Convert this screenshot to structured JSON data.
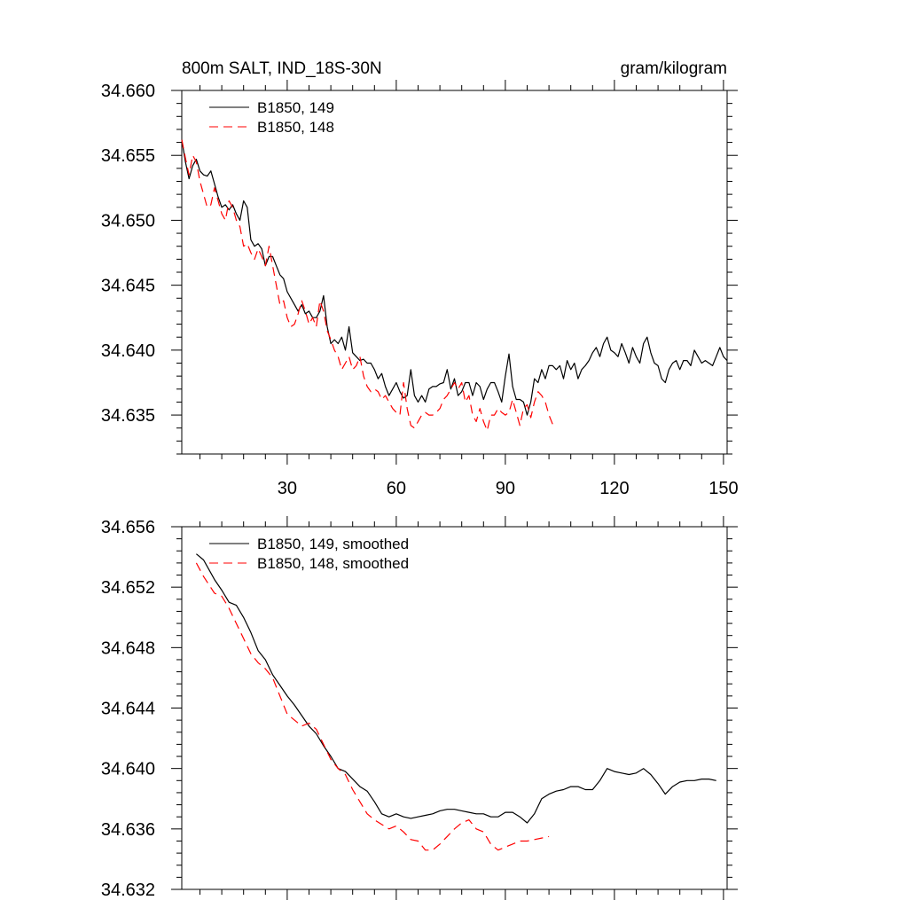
{
  "chart_data": [
    {
      "type": "line",
      "title": "800m SALT, IND_18S-30N",
      "units": "gram/kilogram",
      "xlabel": "",
      "ylabel": "",
      "xlim": [
        1,
        151
      ],
      "ylim": [
        34.632,
        34.66
      ],
      "xticks": [
        30,
        60,
        90,
        120,
        150
      ],
      "yticks": [
        34.635,
        34.64,
        34.645,
        34.65,
        34.655,
        34.66
      ],
      "ytick_labels": [
        "34.635",
        "34.640",
        "34.645",
        "34.650",
        "34.655",
        "34.660"
      ],
      "legend_position": "top-left",
      "series": [
        {
          "name": "B1850, 149",
          "color": "#000000",
          "dash": "solid",
          "x": [
            1,
            2,
            3,
            4,
            5,
            6,
            7,
            8,
            9,
            10,
            11,
            12,
            13,
            14,
            15,
            16,
            17,
            18,
            19,
            20,
            21,
            22,
            23,
            24,
            25,
            26,
            27,
            28,
            29,
            30,
            31,
            32,
            33,
            34,
            35,
            36,
            37,
            38,
            39,
            40,
            41,
            42,
            43,
            44,
            45,
            46,
            47,
            48,
            49,
            50,
            51,
            52,
            53,
            54,
            55,
            56,
            57,
            58,
            59,
            60,
            61,
            62,
            63,
            64,
            65,
            66,
            67,
            68,
            69,
            70,
            71,
            72,
            73,
            74,
            75,
            76,
            77,
            78,
            79,
            80,
            81,
            82,
            83,
            84,
            85,
            86,
            87,
            88,
            89,
            90,
            91,
            92,
            93,
            94,
            95,
            96,
            97,
            98,
            99,
            100,
            101,
            102,
            103,
            104,
            105,
            106,
            107,
            108,
            109,
            110,
            111,
            112,
            113,
            114,
            115,
            116,
            117,
            118,
            119,
            120,
            121,
            122,
            123,
            124,
            125,
            126,
            127,
            128,
            129,
            130,
            131,
            132,
            133,
            134,
            135,
            136,
            137,
            138,
            139,
            140,
            141,
            142,
            143,
            144,
            145,
            146,
            147,
            148,
            149,
            150,
            151
          ],
          "values": [
            34.6562,
            34.6545,
            34.6532,
            34.6542,
            34.6547,
            34.6538,
            34.6535,
            34.6534,
            34.6538,
            34.6528,
            34.6518,
            34.651,
            34.6512,
            34.6508,
            34.6512,
            34.6505,
            34.65,
            34.6515,
            34.651,
            34.6485,
            34.648,
            34.6482,
            34.6478,
            34.6465,
            34.6472,
            34.6472,
            34.6465,
            34.6458,
            34.6455,
            34.6445,
            34.644,
            34.6435,
            34.643,
            34.6435,
            34.6428,
            34.643,
            34.6425,
            34.6425,
            34.643,
            34.6442,
            34.6418,
            34.6405,
            34.6408,
            34.6405,
            34.641,
            34.64,
            34.6418,
            34.6398,
            34.6395,
            34.6392,
            34.6393,
            34.639,
            34.639,
            34.6385,
            34.6378,
            34.6382,
            34.6372,
            34.6365,
            34.637,
            34.6375,
            34.6368,
            34.6363,
            34.6365,
            34.6385,
            34.6365,
            34.636,
            34.6365,
            34.636,
            34.637,
            34.6372,
            34.6372,
            34.6374,
            34.6375,
            34.6385,
            34.637,
            34.6378,
            34.6365,
            34.6368,
            34.6375,
            34.6375,
            34.6365,
            34.6375,
            34.6372,
            34.6362,
            34.637,
            34.6375,
            34.6375,
            34.6368,
            34.636,
            34.638,
            34.6397,
            34.6372,
            34.6362,
            34.6362,
            34.636,
            34.635,
            34.636,
            34.6378,
            34.6375,
            34.6385,
            34.6378,
            34.6388,
            34.6388,
            34.6385,
            34.6388,
            34.6378,
            34.6392,
            34.6385,
            34.639,
            34.6378,
            34.6385,
            34.6388,
            34.6392,
            34.6398,
            34.6402,
            34.6395,
            34.6405,
            34.641,
            34.64,
            34.6398,
            34.6395,
            34.6405,
            34.6398,
            34.639,
            34.6402,
            34.6395,
            34.639,
            34.6405,
            34.641,
            34.6398,
            34.639,
            34.6388,
            34.6378,
            34.6375,
            34.6385,
            34.639,
            34.6392,
            34.6385,
            34.6392,
            34.6392,
            34.6388,
            34.64,
            34.6395,
            34.639,
            34.6392,
            34.639,
            34.6388,
            34.6395,
            34.6402,
            34.6395,
            34.6392
          ]
        },
        {
          "name": "B1850, 148",
          "color": "#ff0000",
          "dash": "dashed",
          "x": [
            1,
            2,
            3,
            4,
            5,
            6,
            7,
            8,
            9,
            10,
            11,
            12,
            13,
            14,
            15,
            16,
            17,
            18,
            19,
            20,
            21,
            22,
            23,
            24,
            25,
            26,
            27,
            28,
            29,
            30,
            31,
            32,
            33,
            34,
            35,
            36,
            37,
            38,
            39,
            40,
            41,
            42,
            43,
            44,
            45,
            46,
            47,
            48,
            49,
            50,
            51,
            52,
            53,
            54,
            55,
            56,
            57,
            58,
            59,
            60,
            61,
            62,
            63,
            64,
            65,
            66,
            67,
            68,
            69,
            70,
            71,
            72,
            73,
            74,
            75,
            76,
            77,
            78,
            79,
            80,
            81,
            82,
            83,
            84,
            85,
            86,
            87,
            88,
            89,
            90,
            91,
            92,
            93,
            94,
            95,
            96,
            97,
            98,
            99,
            100,
            101,
            102,
            103
          ],
          "values": [
            34.6562,
            34.6548,
            34.6535,
            34.655,
            34.6545,
            34.653,
            34.652,
            34.651,
            34.6512,
            34.6525,
            34.6515,
            34.6505,
            34.65,
            34.6515,
            34.651,
            34.65,
            34.6495,
            34.648,
            34.6482,
            34.6475,
            34.647,
            34.6478,
            34.6472,
            34.6465,
            34.648,
            34.6465,
            34.645,
            34.6435,
            34.6438,
            34.6425,
            34.6418,
            34.642,
            34.6428,
            34.6438,
            34.643,
            34.642,
            34.6425,
            34.6418,
            34.6438,
            34.643,
            34.6415,
            34.6408,
            34.64,
            34.6395,
            34.6385,
            34.639,
            34.6395,
            34.6385,
            34.6388,
            34.6395,
            34.638,
            34.6372,
            34.6368,
            34.637,
            34.6368,
            34.6362,
            34.6365,
            34.636,
            34.6355,
            34.6352,
            34.635,
            34.6375,
            34.6355,
            34.6342,
            34.634,
            34.6345,
            34.635,
            34.6352,
            34.635,
            34.635,
            34.6352,
            34.6355,
            34.6362,
            34.6365,
            34.637,
            34.6375,
            34.637,
            34.6375,
            34.636,
            34.6365,
            34.635,
            34.6345,
            34.6355,
            34.6345,
            34.6338,
            34.635,
            34.635,
            34.6355,
            34.6352,
            34.635,
            34.6352,
            34.6362,
            34.6352,
            34.6342,
            34.6355,
            34.6358,
            34.6348,
            34.636,
            34.6368,
            34.6365,
            34.636,
            34.635,
            34.6343
          ]
        }
      ]
    },
    {
      "type": "line",
      "title": "",
      "xlabel": "",
      "ylabel": "",
      "xlim": [
        1,
        151
      ],
      "ylim": [
        34.632,
        34.656
      ],
      "xticks": [
        30,
        60,
        90,
        120,
        150
      ],
      "yticks": [
        34.632,
        34.636,
        34.64,
        34.644,
        34.648,
        34.652,
        34.656
      ],
      "ytick_labels": [
        "34.632",
        "34.636",
        "34.640",
        "34.644",
        "34.648",
        "34.652",
        "34.656"
      ],
      "legend_position": "top-left",
      "series": [
        {
          "name": "B1850, 149, smoothed",
          "color": "#000000",
          "dash": "solid",
          "x": [
            5,
            7,
            10,
            12,
            14,
            16,
            18,
            20,
            22,
            24,
            26,
            28,
            30,
            32,
            34,
            36,
            38,
            40,
            42,
            44,
            46,
            48,
            50,
            52,
            54,
            56,
            58,
            60,
            62,
            64,
            66,
            68,
            70,
            72,
            74,
            76,
            78,
            80,
            82,
            84,
            86,
            88,
            90,
            92,
            94,
            96,
            98,
            100,
            102,
            104,
            106,
            108,
            110,
            112,
            114,
            116,
            118,
            120,
            122,
            124,
            126,
            128,
            130,
            132,
            134,
            136,
            138,
            140,
            142,
            144,
            146,
            148
          ],
          "values": [
            34.6542,
            34.6538,
            34.6525,
            34.6518,
            34.651,
            34.6508,
            34.65,
            34.649,
            34.6478,
            34.6472,
            34.6462,
            34.6455,
            34.6448,
            34.6442,
            34.6435,
            34.6428,
            34.6423,
            34.6415,
            34.6408,
            34.64,
            34.6398,
            34.6393,
            34.6388,
            34.6385,
            34.6378,
            34.637,
            34.6368,
            34.637,
            34.6368,
            34.6367,
            34.6368,
            34.6369,
            34.637,
            34.6372,
            34.6373,
            34.6373,
            34.6372,
            34.6371,
            34.637,
            34.637,
            34.6368,
            34.6368,
            34.6371,
            34.6371,
            34.6368,
            34.6364,
            34.637,
            34.638,
            34.6383,
            34.6385,
            34.6386,
            34.6388,
            34.6388,
            34.6386,
            34.6386,
            34.6392,
            34.64,
            34.6398,
            34.6397,
            34.6396,
            34.6397,
            34.64,
            34.6396,
            34.639,
            34.6383,
            34.6388,
            34.6391,
            34.6392,
            34.6392,
            34.6393,
            34.6393,
            34.6392
          ]
        },
        {
          "name": "B1850, 148, smoothed",
          "color": "#ff0000",
          "dash": "dashed",
          "x": [
            5,
            7,
            10,
            12,
            14,
            16,
            18,
            20,
            22,
            24,
            26,
            28,
            30,
            32,
            34,
            36,
            38,
            40,
            42,
            44,
            46,
            48,
            50,
            52,
            54,
            56,
            58,
            60,
            62,
            64,
            66,
            68,
            70,
            72,
            74,
            76,
            78,
            80,
            82,
            84,
            86,
            88,
            90,
            92,
            94,
            96,
            98,
            100,
            102
          ],
          "values": [
            34.6536,
            34.6527,
            34.6516,
            34.6514,
            34.6506,
            34.6496,
            34.6486,
            34.6476,
            34.647,
            34.6466,
            34.646,
            34.6448,
            34.6436,
            34.6432,
            34.6428,
            34.643,
            34.6426,
            34.6416,
            34.6406,
            34.64,
            34.6396,
            34.6386,
            34.6378,
            34.637,
            34.6366,
            34.6363,
            34.636,
            34.6362,
            34.6358,
            34.6353,
            34.6352,
            34.6346,
            34.6346,
            34.635,
            34.6355,
            34.636,
            34.6364,
            34.6366,
            34.636,
            34.6358,
            34.635,
            34.6346,
            34.6348,
            34.635,
            34.6352,
            34.6352,
            34.6353,
            34.6354,
            34.6355
          ]
        }
      ]
    }
  ]
}
